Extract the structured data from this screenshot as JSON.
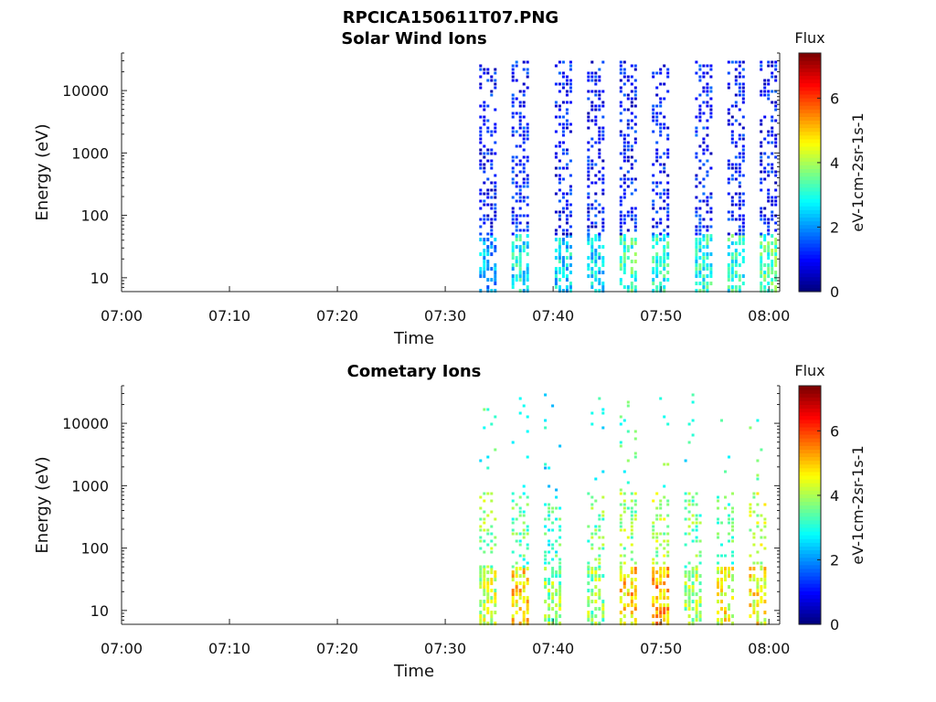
{
  "figure_title": "RPCICA150611T07.PNG",
  "chart_data": [
    {
      "type": "heatmap",
      "title": "Solar Wind Ions",
      "xlabel": "Time",
      "ylabel": "Energy (eV)",
      "x_scale": "time",
      "y_scale": "log",
      "xlim": [
        "07:00",
        "08:01"
      ],
      "ylim": [
        6,
        40000
      ],
      "xticks": [
        "07:00",
        "07:10",
        "07:20",
        "07:30",
        "07:40",
        "07:50",
        "08:00"
      ],
      "yticks": [
        {
          "value": 10,
          "label": "10"
        },
        {
          "value": 100,
          "label": "100"
        },
        {
          "value": 1000,
          "label": "1000"
        },
        {
          "value": 10000,
          "label": "10000"
        }
      ],
      "colorbar": {
        "label": "Flux",
        "unit": "eV-1cm-2sr-1s-1",
        "range": [
          0,
          7.4
        ],
        "ticks": [
          0,
          2,
          4,
          6
        ],
        "colormap": "jet"
      },
      "bursts": [
        {
          "time": "07:34",
          "flux_low": 2.2,
          "flux_high": 1.0
        },
        {
          "time": "07:37",
          "flux_low": 2.8,
          "flux_high": 1.1
        },
        {
          "time": "07:41",
          "flux_low": 2.6,
          "flux_high": 1.0
        },
        {
          "time": "07:44",
          "flux_low": 2.6,
          "flux_high": 1.0
        },
        {
          "time": "07:47",
          "flux_low": 3.2,
          "flux_high": 1.0
        },
        {
          "time": "07:50",
          "flux_low": 3.0,
          "flux_high": 1.0
        },
        {
          "time": "07:54",
          "flux_low": 3.0,
          "flux_high": 1.1
        },
        {
          "time": "07:57",
          "flux_low": 3.0,
          "flux_high": 1.0
        },
        {
          "time": "08:00",
          "flux_low": 3.4,
          "flux_high": 1.0
        }
      ]
    },
    {
      "type": "heatmap",
      "title": "Cometary Ions",
      "xlabel": "Time",
      "ylabel": "Energy (eV)",
      "x_scale": "time",
      "y_scale": "log",
      "xlim": [
        "07:00",
        "08:01"
      ],
      "ylim": [
        6,
        40000
      ],
      "xticks": [
        "07:00",
        "07:10",
        "07:20",
        "07:30",
        "07:40",
        "07:50",
        "08:00"
      ],
      "yticks": [
        {
          "value": 10,
          "label": "10"
        },
        {
          "value": 100,
          "label": "100"
        },
        {
          "value": 1000,
          "label": "1000"
        },
        {
          "value": 10000,
          "label": "10000"
        }
      ],
      "colorbar": {
        "label": "Flux",
        "unit": "eV-1cm-2sr-1s-1",
        "range": [
          0,
          7.4
        ],
        "ticks": [
          0,
          2,
          4,
          6
        ],
        "colormap": "jet"
      },
      "bursts": [
        {
          "time": "07:34",
          "flux_low": 4.2,
          "flux_high": 3.2
        },
        {
          "time": "07:37",
          "flux_low": 4.8,
          "flux_high": 2.8
        },
        {
          "time": "07:40",
          "flux_low": 3.8,
          "flux_high": 2.6
        },
        {
          "time": "07:44",
          "flux_low": 3.8,
          "flux_high": 3.0
        },
        {
          "time": "07:47",
          "flux_low": 5.0,
          "flux_high": 3.2
        },
        {
          "time": "07:50",
          "flux_low": 5.2,
          "flux_high": 3.4
        },
        {
          "time": "07:53",
          "flux_low": 4.0,
          "flux_high": 3.0
        },
        {
          "time": "07:56",
          "flux_low": 4.6,
          "flux_high": 2.8
        },
        {
          "time": "07:59",
          "flux_low": 4.6,
          "flux_high": 3.6
        }
      ]
    }
  ]
}
